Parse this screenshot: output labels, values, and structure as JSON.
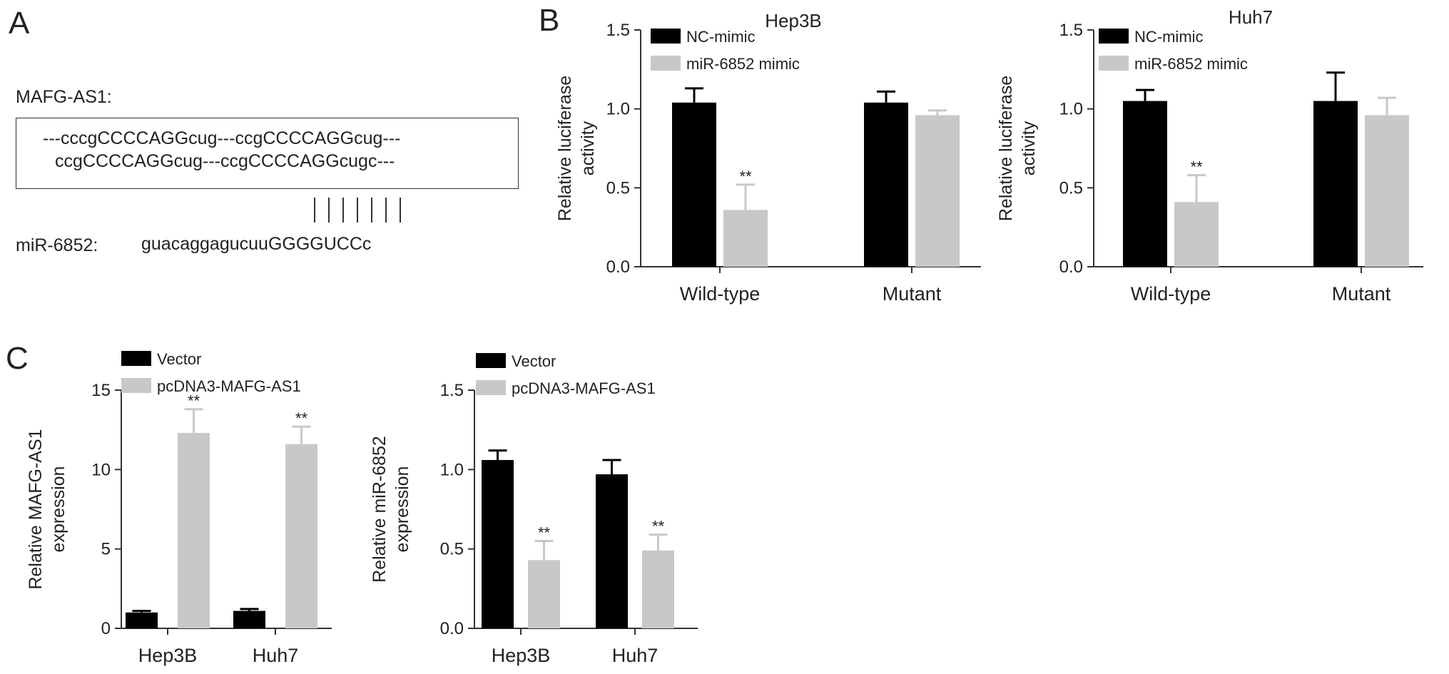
{
  "panel_letters": {
    "a": "A",
    "b": "B",
    "c": "C"
  },
  "panel_a": {
    "label_lnc": "MAFG-AS1:",
    "seq_line1": "---cccgCCCCAGGcug---ccgCCCCAGGcug---",
    "seq_line2": "ccgCCCCAGGcug---ccgCCCCAGGcugc---",
    "label_mir": "miR-6852:",
    "mir_seq": "guacaggagucuuGGGGUCCc",
    "pair_count": 7
  },
  "colors": {
    "black_series": "#000000",
    "gray_series": "#c8c8c8",
    "axis": "#333333"
  },
  "chart_data": [
    {
      "id": "b_hep3b",
      "type": "bar",
      "title": "Hep3B",
      "ylabel": "Relative luciferase activity",
      "xlabel": "",
      "categories": [
        "Wild-type",
        "Mutant"
      ],
      "ylim": [
        0,
        1.5
      ],
      "yticks": [
        "0.0",
        "0.5",
        "1.0",
        "1.5"
      ],
      "legend": "top-left",
      "series": [
        {
          "name": "NC-mimic",
          "color": "#000000",
          "values": [
            1.04,
            1.04
          ],
          "errors": [
            0.09,
            0.07
          ]
        },
        {
          "name": "miR-6852 mimic",
          "color": "#c8c8c8",
          "values": [
            0.36,
            0.96
          ],
          "errors": [
            0.16,
            0.03
          ]
        }
      ],
      "significance": [
        {
          "series": 1,
          "category": 0,
          "text": "**"
        }
      ]
    },
    {
      "id": "b_huh7",
      "type": "bar",
      "title": "Huh7",
      "ylabel": "Relative luciferase activity",
      "xlabel": "",
      "categories": [
        "Wild-type",
        "Mutant"
      ],
      "ylim": [
        0,
        1.5
      ],
      "yticks": [
        "0.0",
        "0.5",
        "1.0",
        "1.5"
      ],
      "legend": "top-left",
      "series": [
        {
          "name": "NC-mimic",
          "color": "#000000",
          "values": [
            1.05,
            1.05
          ],
          "errors": [
            0.07,
            0.18
          ]
        },
        {
          "name": "miR-6852 mimic",
          "color": "#c8c8c8",
          "values": [
            0.41,
            0.96
          ],
          "errors": [
            0.17,
            0.11
          ]
        }
      ],
      "significance": [
        {
          "series": 1,
          "category": 0,
          "text": "**"
        }
      ]
    },
    {
      "id": "c_mafg",
      "type": "bar",
      "title": "",
      "ylabel": "Relative MAFG-AS1 expression",
      "xlabel": "",
      "categories": [
        "Hep3B",
        "Huh7"
      ],
      "ylim": [
        0,
        15
      ],
      "yticks": [
        "0",
        "5",
        "10",
        "15"
      ],
      "legend": "top-left",
      "series": [
        {
          "name": "Vector",
          "color": "#000000",
          "values": [
            1.0,
            1.1
          ],
          "errors": [
            0.1,
            0.12
          ]
        },
        {
          "name": "pcDNA3-MAFG-AS1",
          "color": "#c8c8c8",
          "values": [
            12.3,
            11.6
          ],
          "errors": [
            1.5,
            1.1
          ]
        }
      ],
      "significance": [
        {
          "series": 1,
          "category": 0,
          "text": "**"
        },
        {
          "series": 1,
          "category": 1,
          "text": "**"
        }
      ]
    },
    {
      "id": "c_mir",
      "type": "bar",
      "title": "",
      "ylabel": "Relative miR-6852 expression",
      "xlabel": "",
      "categories": [
        "Hep3B",
        "Huh7"
      ],
      "ylim": [
        0,
        1.5
      ],
      "yticks": [
        "0.0",
        "0.5",
        "1.0",
        "1.5"
      ],
      "legend": "top-left",
      "series": [
        {
          "name": "Vector",
          "color": "#000000",
          "values": [
            1.06,
            0.97
          ],
          "errors": [
            0.06,
            0.09
          ]
        },
        {
          "name": "pcDNA3-MAFG-AS1",
          "color": "#c8c8c8",
          "values": [
            0.43,
            0.49
          ],
          "errors": [
            0.12,
            0.1
          ]
        }
      ],
      "significance": [
        {
          "series": 1,
          "category": 0,
          "text": "**"
        },
        {
          "series": 1,
          "category": 1,
          "text": "**"
        }
      ]
    }
  ]
}
